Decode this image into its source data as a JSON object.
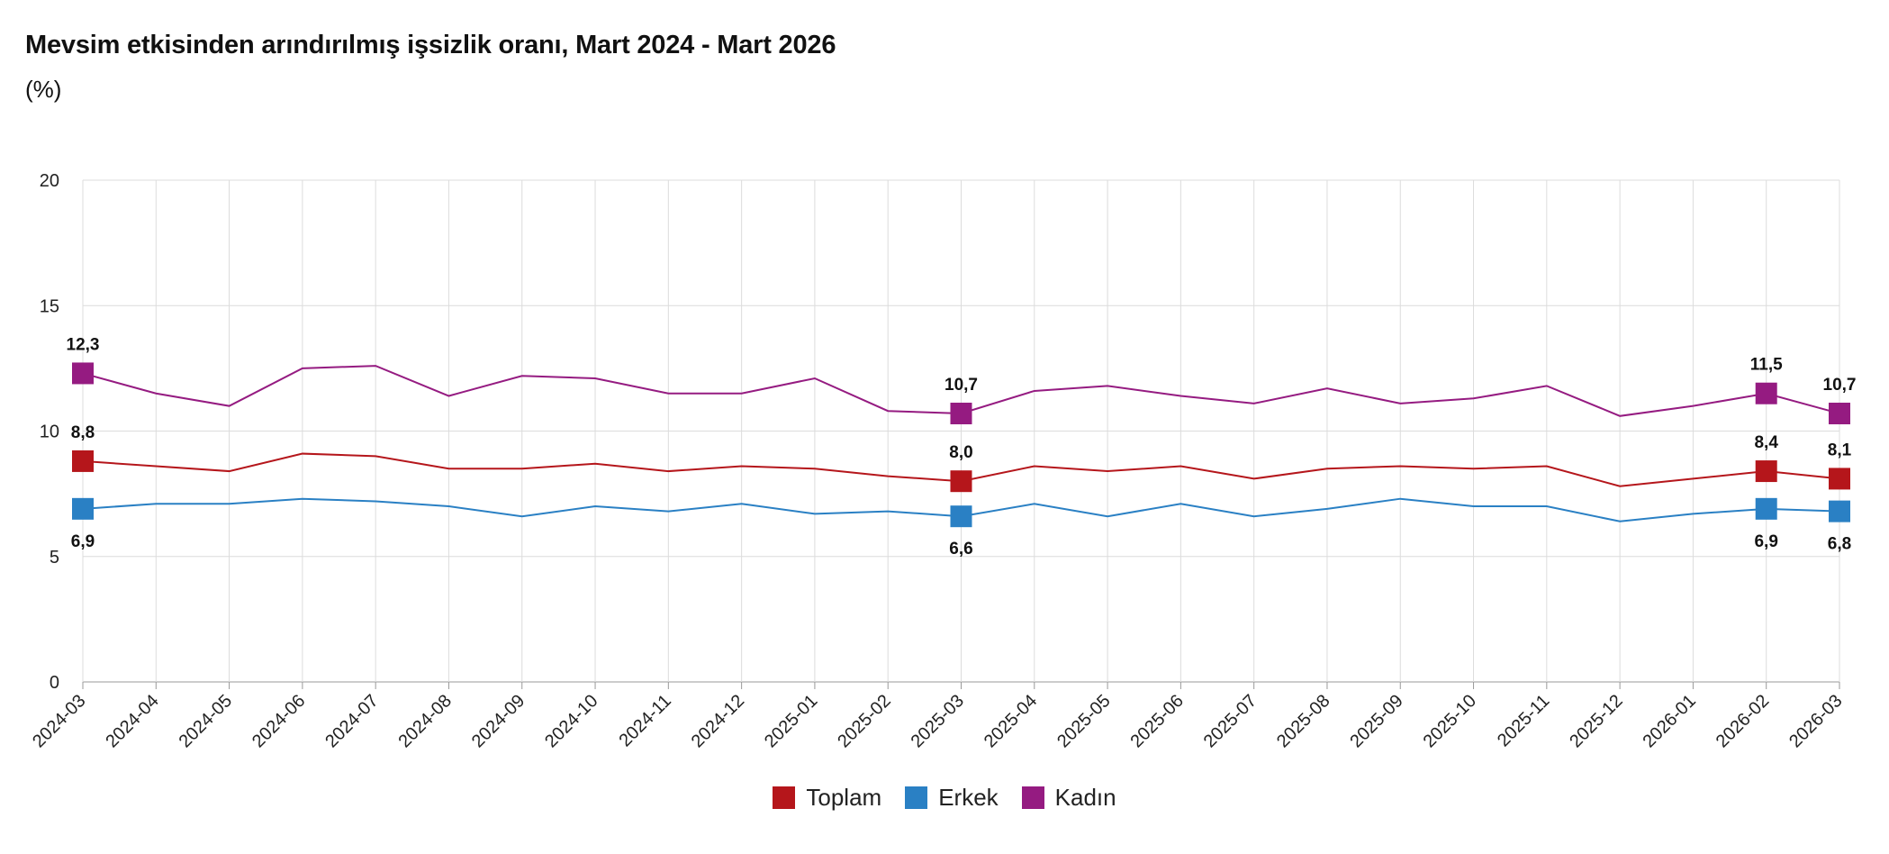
{
  "title": "Mevsim etkisinden arındırılmış işsizlik oranı, Mart 2024 - Mart 2026",
  "subtitle": "(%)",
  "chart_data": {
    "type": "line",
    "x": [
      "2024-03",
      "2024-04",
      "2024-05",
      "2024-06",
      "2024-07",
      "2024-08",
      "2024-09",
      "2024-10",
      "2024-11",
      "2024-12",
      "2025-01",
      "2025-02",
      "2025-03",
      "2025-04",
      "2025-05",
      "2025-06",
      "2025-07",
      "2025-08",
      "2025-09",
      "2025-10",
      "2025-11",
      "2025-12",
      "2026-01",
      "2026-02",
      "2026-03"
    ],
    "ylim": [
      0,
      20
    ],
    "yticks": [
      0,
      5,
      10,
      15,
      20
    ],
    "grid": true,
    "legend_position": "bottom-center",
    "series": [
      {
        "name": "Toplam",
        "color": "#b5161b",
        "values": [
          8.8,
          8.6,
          8.4,
          9.1,
          9.0,
          8.5,
          8.5,
          8.7,
          8.4,
          8.6,
          8.5,
          8.2,
          8.0,
          8.6,
          8.4,
          8.6,
          8.1,
          8.5,
          8.6,
          8.5,
          8.6,
          7.8,
          8.1,
          8.4,
          8.1
        ],
        "label_indices": [
          0,
          12,
          23,
          24
        ],
        "label_pos": "above"
      },
      {
        "name": "Erkek",
        "color": "#2a80c4",
        "values": [
          6.9,
          7.1,
          7.1,
          7.3,
          7.2,
          7.0,
          6.6,
          7.0,
          6.8,
          7.1,
          6.7,
          6.8,
          6.6,
          7.1,
          6.6,
          7.1,
          6.6,
          6.9,
          7.3,
          7.0,
          7.0,
          6.4,
          6.7,
          6.9,
          6.8
        ],
        "label_indices": [
          0,
          12,
          23,
          24
        ],
        "label_pos": "below"
      },
      {
        "name": "Kadın",
        "color": "#951b81",
        "values": [
          12.3,
          11.5,
          11.0,
          12.5,
          12.6,
          11.4,
          12.2,
          12.1,
          11.5,
          11.5,
          12.1,
          10.8,
          10.7,
          11.6,
          11.8,
          11.4,
          11.1,
          11.7,
          11.1,
          11.3,
          11.8,
          10.6,
          11.0,
          11.5,
          10.7
        ],
        "label_indices": [
          0,
          12,
          23,
          24
        ],
        "label_pos": "above"
      }
    ]
  }
}
